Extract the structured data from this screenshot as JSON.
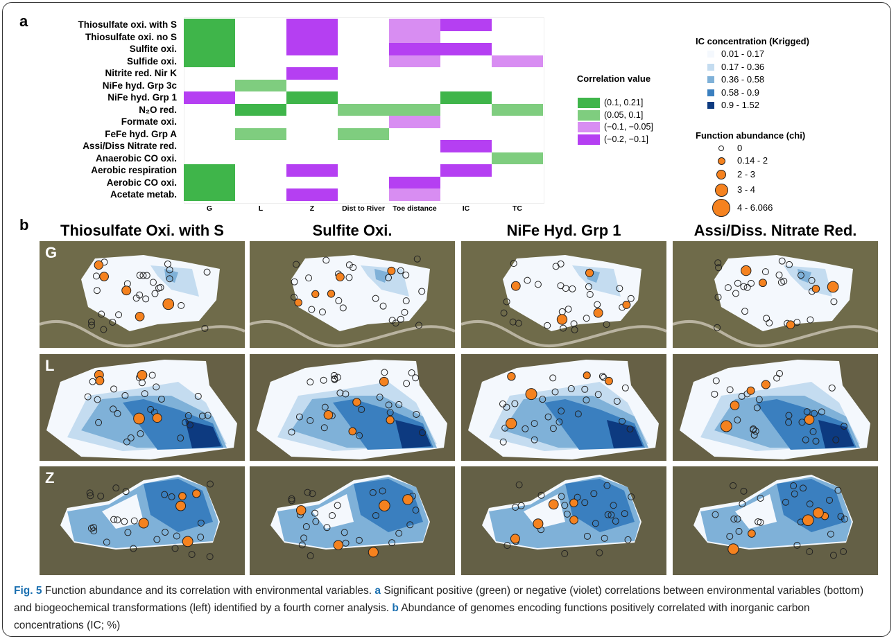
{
  "panel_a": {
    "label": "a",
    "heatmap": {
      "rows": [
        "Thiosulfate oxi. with S",
        "Thiosulfate oxi. no S",
        "Sulfite oxi.",
        "Sulfide oxi.",
        "Nitrite red. Nir K",
        "NiFe hyd. Grp 3c",
        "NiFe hyd. Grp 1",
        "N₂O red.",
        "Formate oxi.",
        "FeFe hyd. Grp A",
        "Assi/Diss Nitrate red.",
        "Anaerobic CO oxi.",
        "Aerobic respiration",
        "Aerobic CO oxi.",
        "Acetate metab."
      ],
      "columns": [
        "G",
        "L",
        "Z",
        "Dist to River",
        "Toe distance",
        "IC",
        "TC"
      ],
      "cells": [
        [
          "#3fb54a",
          null,
          "#b53ff2",
          null,
          "#d88df2",
          "#b53ff2",
          null
        ],
        [
          "#3fb54a",
          null,
          "#b53ff2",
          null,
          "#d88df2",
          null,
          null
        ],
        [
          "#3fb54a",
          null,
          "#b53ff2",
          null,
          "#b53ff2",
          "#b53ff2",
          null
        ],
        [
          "#3fb54a",
          null,
          null,
          null,
          "#d88df2",
          null,
          "#d88df2"
        ],
        [
          null,
          null,
          "#b53ff2",
          null,
          null,
          null,
          null
        ],
        [
          null,
          "#7fcd7f",
          null,
          null,
          null,
          null,
          null
        ],
        [
          "#b53ff2",
          null,
          "#3fb54a",
          null,
          null,
          "#3fb54a",
          null
        ],
        [
          null,
          "#3fb54a",
          null,
          "#7fcd7f",
          "#7fcd7f",
          null,
          "#7fcd7f"
        ],
        [
          null,
          null,
          null,
          null,
          "#d88df2",
          null,
          null
        ],
        [
          null,
          "#7fcd7f",
          null,
          "#7fcd7f",
          null,
          null,
          null
        ],
        [
          null,
          null,
          null,
          null,
          null,
          "#b53ff2",
          null
        ],
        [
          null,
          null,
          null,
          null,
          null,
          null,
          "#7fcd7f"
        ],
        [
          "#3fb54a",
          null,
          "#b53ff2",
          null,
          null,
          "#b53ff2",
          null
        ],
        [
          "#3fb54a",
          null,
          null,
          null,
          "#b53ff2",
          null,
          null
        ],
        [
          "#3fb54a",
          null,
          "#b53ff2",
          null,
          "#d88df2",
          null,
          null
        ]
      ]
    },
    "correlation_legend": {
      "title": "Correlation value",
      "entries": [
        {
          "label": "(0.1, 0.21]",
          "color": "#3fb54a"
        },
        {
          "label": "(0.05, 0.1]",
          "color": "#7fcd7f"
        },
        {
          "label": "(−0.1, −0.05]",
          "color": "#d88df2"
        },
        {
          "label": "(−0.2, −0.1]",
          "color": "#b53ff2"
        }
      ]
    },
    "ic_legend": {
      "title": "IC concentration (Krigged)",
      "entries": [
        {
          "label": "0.01 - 0.17",
          "color": "#f4f8fd"
        },
        {
          "label": "0.17 - 0.36",
          "color": "#c4dcf0"
        },
        {
          "label": "0.36 - 0.58",
          "color": "#7fb1d8"
        },
        {
          "label": "0.58 - 0.9",
          "color": "#3a7fbf"
        },
        {
          "label": "0.9 - 1.52",
          "color": "#0d3a80"
        }
      ]
    },
    "abundance_legend": {
      "title": "Function abundance (chi)",
      "entries": [
        "0",
        "0.14 - 2",
        "2 - 3",
        "3 - 4",
        "4 - 6.066"
      ]
    }
  },
  "panel_b": {
    "label": "b",
    "columns": [
      "Thiosulfate Oxi.  with S",
      "Sulfite Oxi.",
      "NiFe Hyd. Grp 1",
      "Assi/Diss. Nitrate Red."
    ],
    "rows": [
      "G",
      "L",
      "Z"
    ]
  },
  "caption": [
    {
      "text": "Fig. 5",
      "bold": true
    },
    {
      "text": " Function abundance and its correlation with environmental variables. "
    },
    {
      "text": "a",
      "bold": true
    },
    {
      "text": " Significant positive (green) or negative (violet) correlations between environmental variables (bottom) and biogeochemical transformations (left) identified by a fourth corner analysis. "
    },
    {
      "text": "b",
      "bold": true
    },
    {
      "text": " Abundance of genomes encoding functions positively correlated with inorganic carbon concentrations (IC; %)"
    }
  ]
}
